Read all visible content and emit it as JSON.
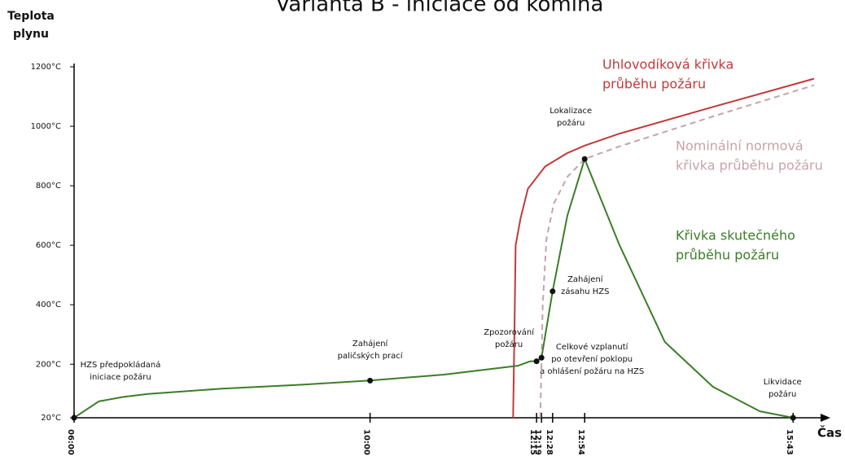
{
  "chart_data": {
    "type": "line",
    "title": "Varianta B - iniciace od komína",
    "y_label": [
      "Teplota",
      "plynu"
    ],
    "x_label": "Čas",
    "xlim": [
      360,
      960
    ],
    "ylim": [
      20,
      1200
    ],
    "xticks": [
      {
        "value": 360,
        "label": "06:00"
      },
      {
        "value": 600,
        "label": "10:00"
      },
      {
        "value": 735,
        "label": "12:15"
      },
      {
        "value": 739,
        "label": "12:19"
      },
      {
        "value": 748,
        "label": "12:28"
      },
      {
        "value": 774,
        "label": "12:54"
      },
      {
        "value": 943,
        "label": "15:43"
      }
    ],
    "yticks": [
      {
        "value": 20,
        "label": "20°C"
      },
      {
        "value": 200,
        "label": "200°C"
      },
      {
        "value": 400,
        "label": "400°C"
      },
      {
        "value": 600,
        "label": "600°C"
      },
      {
        "value": 800,
        "label": "800°C"
      },
      {
        "value": 1000,
        "label": "1000°C"
      },
      {
        "value": 1200,
        "label": "1200°C"
      }
    ],
    "series": [
      {
        "name": [
          "Uhlovodíková křivka",
          "průběhu požáru"
        ],
        "color": "#c2393b",
        "dash": false,
        "x": [
          716,
          717,
          718,
          722,
          728,
          742,
          760,
          774,
          802,
          878,
          960
        ],
        "values": [
          20,
          300,
          600,
          690,
          790,
          865,
          910,
          935,
          975,
          1065,
          1160
        ]
      },
      {
        "name": [
          "Nominální normová",
          "křivka průběhu požáru"
        ],
        "color": "#c4a4a8",
        "dash": true,
        "x": [
          738,
          740,
          743,
          749,
          760,
          774,
          802,
          878,
          960
        ],
        "values": [
          20,
          400,
          620,
          740,
          830,
          890,
          932,
          1033,
          1138
        ]
      },
      {
        "name": [
          "Křivka skutečného",
          "průběhu požáru"
        ],
        "color": "#3c7d28",
        "dash": false,
        "x": [
          360,
          380,
          400,
          420,
          480,
          540,
          600,
          660,
          720,
          730,
          735,
          739,
          748,
          760,
          774,
          802,
          839,
          878,
          916,
          943
        ],
        "values": [
          20,
          75,
          90,
          100,
          118,
          130,
          145,
          165,
          195,
          210,
          210,
          222,
          445,
          700,
          890,
          603,
          275,
          124,
          42,
          20
        ]
      }
    ],
    "annotations": [
      [
        "HZS předpokládaná",
        "iniciace požáru"
      ],
      [
        "Zahájení",
        "paličských prací"
      ],
      [
        "Zpozorování",
        "požáru"
      ],
      [
        "Celkové vzplanutí",
        "po otevření poklopu",
        "a ohlášení požáru na HZS"
      ],
      [
        "Zahájení",
        "zásahu HZS"
      ],
      [
        "Lokalizace",
        "požáru"
      ],
      [
        "Likvidace",
        "požáru"
      ]
    ]
  }
}
